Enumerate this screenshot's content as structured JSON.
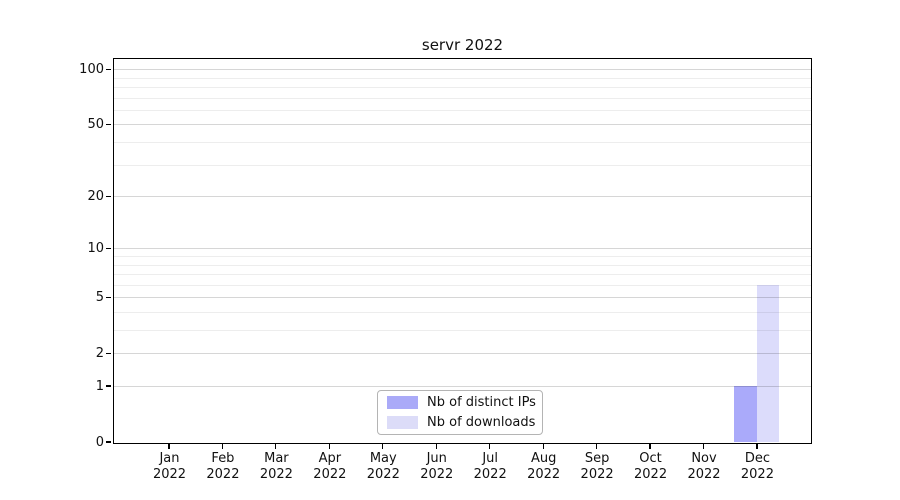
{
  "page": {
    "background": "#ffffff"
  },
  "chart_data": {
    "type": "bar",
    "title": "servr 2022",
    "categories": [
      "Jan 2022",
      "Feb 2022",
      "Mar 2022",
      "Apr 2022",
      "May 2022",
      "Jun 2022",
      "Jul 2022",
      "Aug 2022",
      "Sep 2022",
      "Oct 2022",
      "Nov 2022",
      "Dec 2022"
    ],
    "series": [
      {
        "name": "Nb of distinct IPs",
        "color": "#aaaaf8",
        "fill_rgba": "rgba(85,85,245,0.5)",
        "values": [
          0,
          0,
          0,
          0,
          0,
          0,
          0,
          0,
          0,
          0,
          0,
          1
        ]
      },
      {
        "name": "Nb of downloads",
        "color": "#dcdcf8",
        "fill_rgba": "rgba(90,90,235,0.21)",
        "values": [
          0,
          0,
          0,
          0,
          0,
          0,
          0,
          0,
          0,
          0,
          0,
          6
        ]
      }
    ],
    "xlabel": "",
    "ylabel": "",
    "yscale": "log1p",
    "ylim": [
      0,
      114
    ],
    "y_major_ticks": [
      0,
      1,
      2,
      5,
      10,
      20,
      50,
      100
    ],
    "y_minor_ticks": [
      3,
      4,
      6,
      7,
      8,
      9,
      30,
      40,
      60,
      70,
      80,
      90
    ],
    "grid": "horizontal, major and minor, drawn over bars",
    "legend_position": "lower center"
  }
}
